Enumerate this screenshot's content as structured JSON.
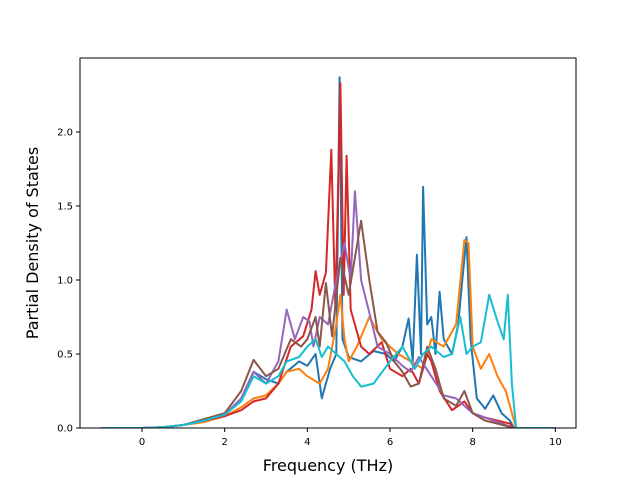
{
  "chart_data": {
    "type": "line",
    "title": "",
    "xlabel": "Frequency (THz)",
    "ylabel": "Partial Density of States",
    "xlim": [
      -1.5,
      10.5
    ],
    "ylim": [
      0.0,
      2.5
    ],
    "xticks": [
      0,
      2,
      4,
      6,
      8,
      10
    ],
    "xtick_labels": [
      "0",
      "2",
      "4",
      "6",
      "8",
      "10"
    ],
    "yticks": [
      0.0,
      0.5,
      1.0,
      1.5,
      2.0
    ],
    "ytick_labels": [
      "0.0",
      "0.5",
      "1.0",
      "1.5",
      "2.0"
    ],
    "grid": false,
    "legend": false,
    "series": [
      {
        "color": "#1f77b4",
        "points": [
          [
            -1,
            0
          ],
          [
            0,
            0
          ],
          [
            0.5,
            0.005
          ],
          [
            1,
            0.02
          ],
          [
            1.5,
            0.05
          ],
          [
            2,
            0.09
          ],
          [
            2.4,
            0.2
          ],
          [
            2.7,
            0.38
          ],
          [
            3,
            0.33
          ],
          [
            3.3,
            0.3
          ],
          [
            3.5,
            0.38
          ],
          [
            3.8,
            0.45
          ],
          [
            4,
            0.42
          ],
          [
            4.2,
            0.5
          ],
          [
            4.35,
            0.2
          ],
          [
            4.45,
            0.3
          ],
          [
            4.55,
            0.4
          ],
          [
            4.7,
            0.5
          ],
          [
            4.78,
            2.37
          ],
          [
            4.85,
            0.6
          ],
          [
            5,
            0.48
          ],
          [
            5.3,
            0.45
          ],
          [
            5.6,
            0.52
          ],
          [
            5.9,
            0.5
          ],
          [
            6.1,
            0.45
          ],
          [
            6.3,
            0.55
          ],
          [
            6.45,
            0.74
          ],
          [
            6.55,
            0.45
          ],
          [
            6.65,
            1.17
          ],
          [
            6.75,
            0.5
          ],
          [
            6.8,
            1.63
          ],
          [
            6.9,
            0.7
          ],
          [
            7,
            0.75
          ],
          [
            7.1,
            0.5
          ],
          [
            7.2,
            0.92
          ],
          [
            7.3,
            0.6
          ],
          [
            7.5,
            0.5
          ],
          [
            7.65,
            0.7
          ],
          [
            7.75,
            1.0
          ],
          [
            7.85,
            1.29
          ],
          [
            7.95,
            0.6
          ],
          [
            8.1,
            0.2
          ],
          [
            8.3,
            0.13
          ],
          [
            8.5,
            0.22
          ],
          [
            8.7,
            0.1
          ],
          [
            8.9,
            0.05
          ],
          [
            9,
            0
          ],
          [
            10,
            0
          ]
        ]
      },
      {
        "color": "#ff7f0e",
        "points": [
          [
            -1,
            0
          ],
          [
            0,
            0
          ],
          [
            0.5,
            0.005
          ],
          [
            1,
            0.02
          ],
          [
            1.5,
            0.04
          ],
          [
            2,
            0.08
          ],
          [
            2.4,
            0.14
          ],
          [
            2.7,
            0.2
          ],
          [
            3,
            0.22
          ],
          [
            3.3,
            0.3
          ],
          [
            3.5,
            0.38
          ],
          [
            3.8,
            0.4
          ],
          [
            4,
            0.35
          ],
          [
            4.3,
            0.3
          ],
          [
            4.5,
            0.4
          ],
          [
            4.7,
            0.7
          ],
          [
            4.8,
            0.9
          ],
          [
            4.9,
            0.6
          ],
          [
            5,
            0.45
          ],
          [
            5.2,
            0.55
          ],
          [
            5.5,
            0.75
          ],
          [
            5.8,
            0.6
          ],
          [
            6.2,
            0.5
          ],
          [
            6.5,
            0.45
          ],
          [
            6.8,
            0.4
          ],
          [
            7,
            0.6
          ],
          [
            7.3,
            0.55
          ],
          [
            7.6,
            0.7
          ],
          [
            7.8,
            1.27
          ],
          [
            7.9,
            1.25
          ],
          [
            8,
            0.55
          ],
          [
            8.2,
            0.4
          ],
          [
            8.4,
            0.5
          ],
          [
            8.6,
            0.35
          ],
          [
            8.8,
            0.25
          ],
          [
            9,
            0.05
          ],
          [
            9.05,
            0
          ],
          [
            10,
            0
          ]
        ]
      },
      {
        "color": "#d62728",
        "points": [
          [
            -1,
            0
          ],
          [
            0,
            0
          ],
          [
            0.5,
            0.005
          ],
          [
            1,
            0.02
          ],
          [
            1.5,
            0.05
          ],
          [
            2,
            0.08
          ],
          [
            2.4,
            0.12
          ],
          [
            2.7,
            0.18
          ],
          [
            3,
            0.2
          ],
          [
            3.3,
            0.3
          ],
          [
            3.6,
            0.55
          ],
          [
            3.9,
            0.62
          ],
          [
            4.1,
            0.8
          ],
          [
            4.2,
            1.06
          ],
          [
            4.3,
            0.9
          ],
          [
            4.45,
            1.05
          ],
          [
            4.58,
            1.88
          ],
          [
            4.68,
            0.8
          ],
          [
            4.8,
            2.33
          ],
          [
            4.88,
            0.9
          ],
          [
            4.95,
            1.84
          ],
          [
            5.05,
            0.8
          ],
          [
            5.3,
            0.55
          ],
          [
            5.5,
            0.5
          ],
          [
            5.8,
            0.58
          ],
          [
            6,
            0.4
          ],
          [
            6.3,
            0.35
          ],
          [
            6.5,
            0.4
          ],
          [
            6.7,
            0.3
          ],
          [
            6.9,
            0.5
          ],
          [
            7,
            0.45
          ],
          [
            7.2,
            0.25
          ],
          [
            7.5,
            0.12
          ],
          [
            7.8,
            0.18
          ],
          [
            8,
            0.1
          ],
          [
            8.3,
            0.07
          ],
          [
            8.6,
            0.05
          ],
          [
            8.9,
            0.03
          ],
          [
            9,
            0
          ],
          [
            10,
            0
          ]
        ]
      },
      {
        "color": "#9467bd",
        "points": [
          [
            -1,
            0
          ],
          [
            0,
            0
          ],
          [
            0.5,
            0.005
          ],
          [
            1,
            0.02
          ],
          [
            1.5,
            0.05
          ],
          [
            2,
            0.09
          ],
          [
            2.4,
            0.2
          ],
          [
            2.7,
            0.38
          ],
          [
            3,
            0.3
          ],
          [
            3.3,
            0.45
          ],
          [
            3.5,
            0.8
          ],
          [
            3.7,
            0.6
          ],
          [
            3.9,
            0.75
          ],
          [
            4.05,
            0.72
          ],
          [
            4.15,
            0.55
          ],
          [
            4.3,
            0.75
          ],
          [
            4.5,
            0.7
          ],
          [
            4.7,
            1.0
          ],
          [
            4.9,
            1.25
          ],
          [
            5.05,
            1.0
          ],
          [
            5.15,
            1.6
          ],
          [
            5.3,
            1.0
          ],
          [
            5.5,
            0.78
          ],
          [
            5.7,
            0.55
          ],
          [
            6,
            0.5
          ],
          [
            6.3,
            0.42
          ],
          [
            6.5,
            0.38
          ],
          [
            6.7,
            0.48
          ],
          [
            7,
            0.35
          ],
          [
            7.3,
            0.22
          ],
          [
            7.6,
            0.2
          ],
          [
            8,
            0.1
          ],
          [
            8.5,
            0.05
          ],
          [
            9,
            0
          ],
          [
            10,
            0
          ]
        ]
      },
      {
        "color": "#8c564b",
        "points": [
          [
            -1,
            0
          ],
          [
            0,
            0
          ],
          [
            0.5,
            0.005
          ],
          [
            1,
            0.02
          ],
          [
            1.5,
            0.06
          ],
          [
            2,
            0.1
          ],
          [
            2.4,
            0.25
          ],
          [
            2.7,
            0.46
          ],
          [
            3,
            0.35
          ],
          [
            3.3,
            0.4
          ],
          [
            3.6,
            0.6
          ],
          [
            3.85,
            0.55
          ],
          [
            4,
            0.6
          ],
          [
            4.2,
            0.75
          ],
          [
            4.3,
            0.55
          ],
          [
            4.45,
            0.98
          ],
          [
            4.6,
            0.62
          ],
          [
            4.8,
            1.15
          ],
          [
            5,
            0.9
          ],
          [
            5.15,
            1.15
          ],
          [
            5.3,
            1.4
          ],
          [
            5.5,
            1.0
          ],
          [
            5.7,
            0.65
          ],
          [
            5.9,
            0.58
          ],
          [
            6.1,
            0.45
          ],
          [
            6.3,
            0.38
          ],
          [
            6.5,
            0.28
          ],
          [
            6.7,
            0.3
          ],
          [
            6.9,
            0.55
          ],
          [
            7.1,
            0.4
          ],
          [
            7.3,
            0.2
          ],
          [
            7.6,
            0.15
          ],
          [
            7.8,
            0.25
          ],
          [
            8,
            0.1
          ],
          [
            8.3,
            0.05
          ],
          [
            8.6,
            0.03
          ],
          [
            9,
            0
          ],
          [
            10,
            0
          ]
        ]
      },
      {
        "color": "#17becf",
        "points": [
          [
            -1,
            0
          ],
          [
            0,
            0
          ],
          [
            0.5,
            0.005
          ],
          [
            1,
            0.02
          ],
          [
            1.5,
            0.05
          ],
          [
            2,
            0.09
          ],
          [
            2.4,
            0.18
          ],
          [
            2.7,
            0.35
          ],
          [
            3,
            0.3
          ],
          [
            3.3,
            0.35
          ],
          [
            3.5,
            0.45
          ],
          [
            3.8,
            0.48
          ],
          [
            4,
            0.55
          ],
          [
            4.2,
            0.6
          ],
          [
            4.35,
            0.48
          ],
          [
            4.5,
            0.55
          ],
          [
            4.7,
            0.5
          ],
          [
            4.9,
            0.45
          ],
          [
            5.1,
            0.35
          ],
          [
            5.3,
            0.28
          ],
          [
            5.6,
            0.3
          ],
          [
            6,
            0.45
          ],
          [
            6.3,
            0.55
          ],
          [
            6.6,
            0.4
          ],
          [
            6.8,
            0.5
          ],
          [
            7,
            0.55
          ],
          [
            7.3,
            0.48
          ],
          [
            7.5,
            0.5
          ],
          [
            7.7,
            0.75
          ],
          [
            7.85,
            0.5
          ],
          [
            8,
            0.55
          ],
          [
            8.2,
            0.58
          ],
          [
            8.4,
            0.9
          ],
          [
            8.6,
            0.72
          ],
          [
            8.75,
            0.6
          ],
          [
            8.85,
            0.9
          ],
          [
            8.95,
            0.3
          ],
          [
            9.05,
            0
          ],
          [
            10,
            0
          ]
        ]
      }
    ]
  }
}
